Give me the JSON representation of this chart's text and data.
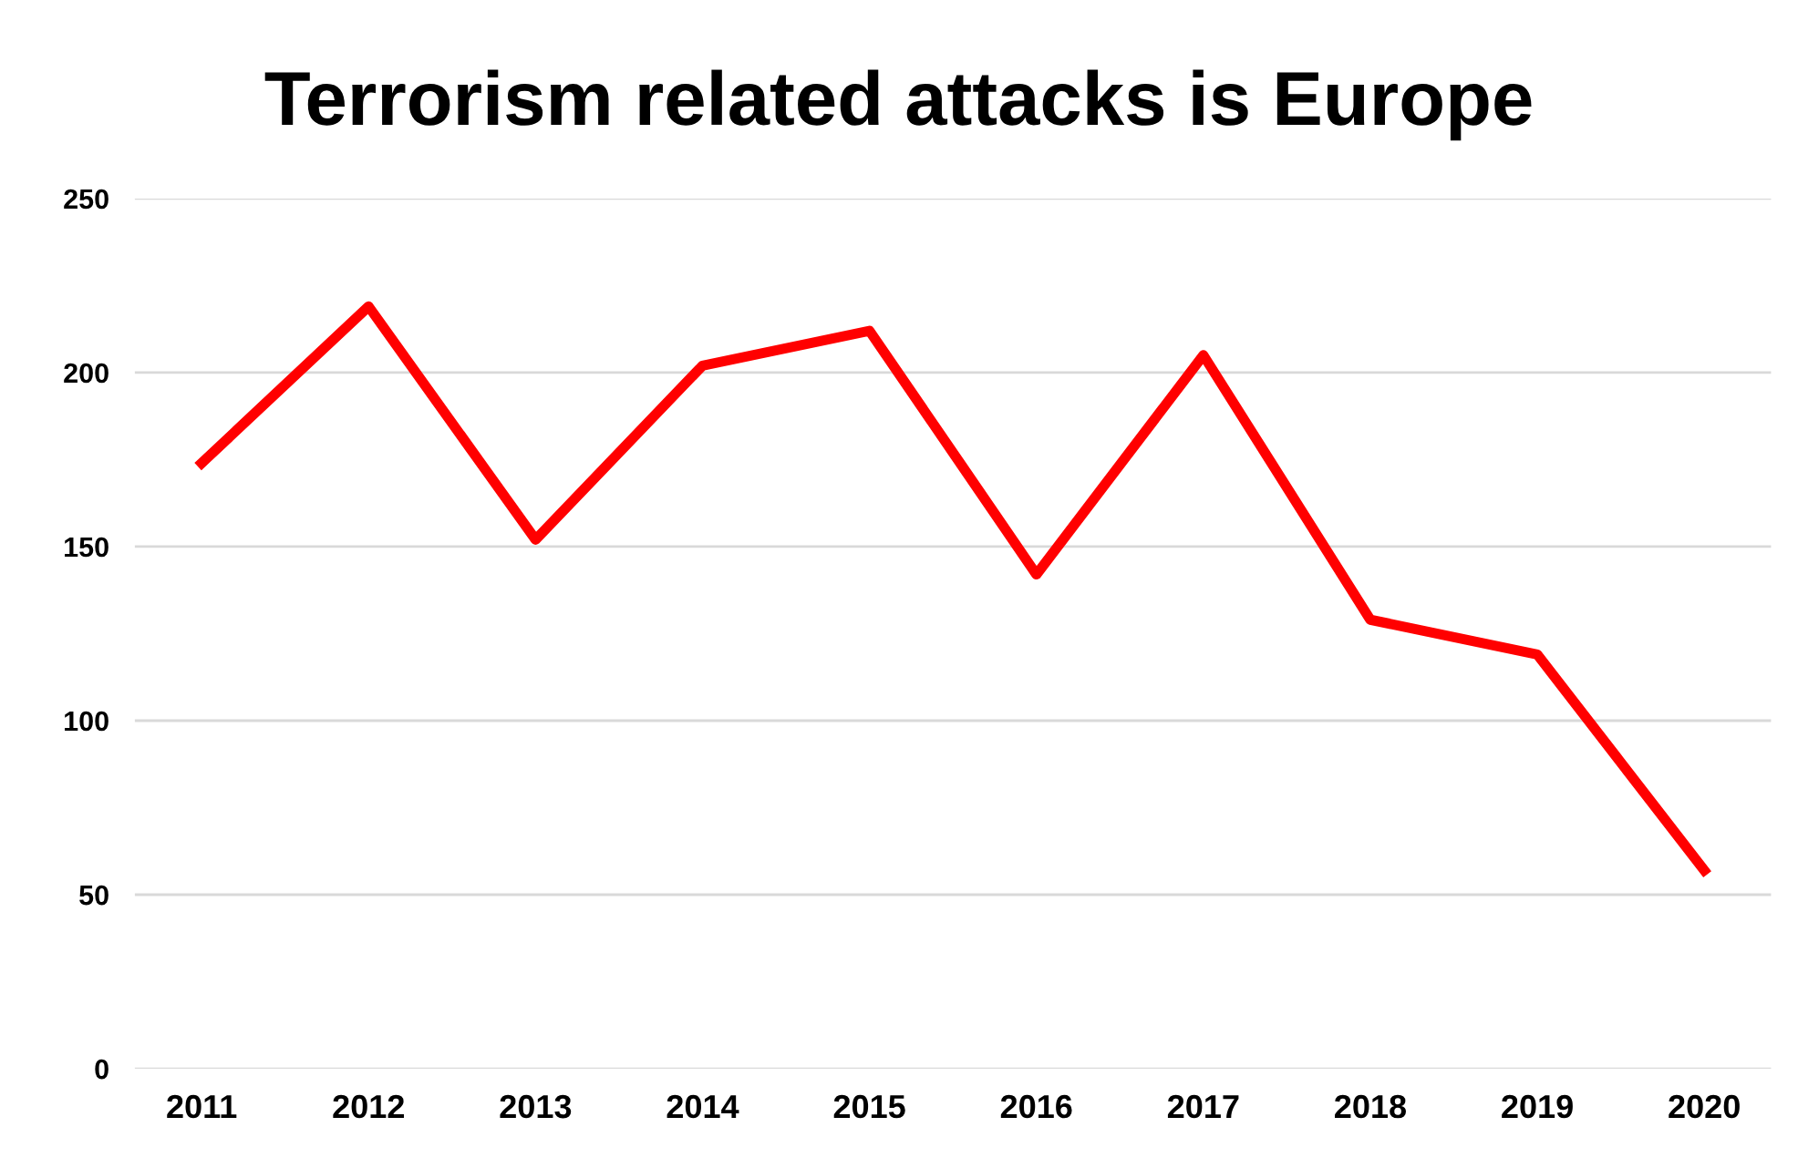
{
  "chart_data": {
    "type": "line",
    "title": "Terrorism related attacks is Europe",
    "categories": [
      "2011",
      "2012",
      "2013",
      "2014",
      "2015",
      "2016",
      "2017",
      "2018",
      "2019",
      "2020"
    ],
    "series": [
      {
        "color": "#ff0000",
        "values": [
          174,
          219,
          152,
          202,
          212,
          142,
          205,
          129,
          119,
          57
        ]
      }
    ],
    "ylim": [
      0,
      250
    ],
    "yticks": [
      0,
      50,
      100,
      150,
      200,
      250
    ],
    "grid": "y",
    "legend": false,
    "marker": "none",
    "line_style": "solid"
  }
}
